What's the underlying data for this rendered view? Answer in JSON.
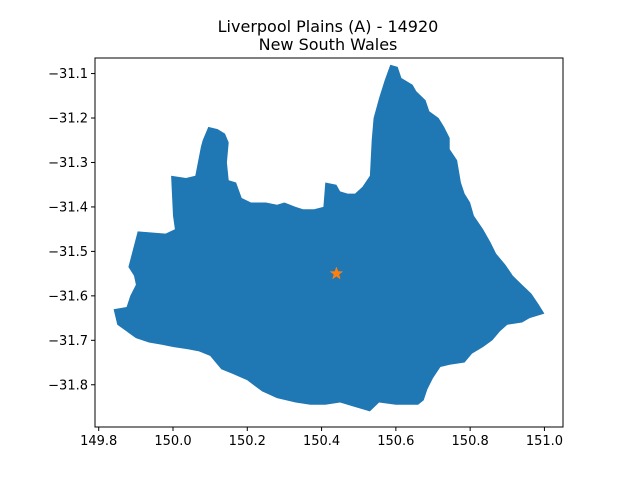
{
  "chart_data": {
    "type": "map",
    "title_line1": "Liverpool Plains (A) - 14920",
    "title_line2": "New South Wales",
    "xlim": [
      149.79,
      151.05
    ],
    "ylim": [
      -31.895,
      -31.065
    ],
    "x_ticks": [
      149.8,
      150.0,
      150.2,
      150.4,
      150.6,
      150.8,
      151.0
    ],
    "x_tick_labels": [
      "149.8",
      "150.0",
      "150.2",
      "150.4",
      "150.6",
      "150.8",
      "151.0"
    ],
    "y_ticks": [
      -31.1,
      -31.2,
      -31.3,
      -31.4,
      -31.5,
      -31.6,
      -31.7,
      -31.8
    ],
    "y_tick_labels": [
      "−31.1",
      "−31.2",
      "−31.3",
      "−31.4",
      "−31.5",
      "−31.6",
      "−31.7",
      "−31.8"
    ],
    "region_color": "#1f77b4",
    "marker_color": "#ff7f0e",
    "marker": {
      "lon": 150.44,
      "lat": -31.55,
      "shape": "star"
    },
    "boundary": [
      [
        149.88,
        -31.535
      ],
      [
        149.905,
        -31.455
      ],
      [
        149.98,
        -31.46
      ],
      [
        150.005,
        -31.45
      ],
      [
        150.0,
        -31.42
      ],
      [
        149.995,
        -31.33
      ],
      [
        150.035,
        -31.335
      ],
      [
        150.06,
        -31.33
      ],
      [
        150.075,
        -31.265
      ],
      [
        150.08,
        -31.25
      ],
      [
        150.095,
        -31.22
      ],
      [
        150.12,
        -31.225
      ],
      [
        150.14,
        -31.235
      ],
      [
        150.15,
        -31.255
      ],
      [
        150.145,
        -31.3
      ],
      [
        150.15,
        -31.34
      ],
      [
        150.17,
        -31.345
      ],
      [
        150.185,
        -31.38
      ],
      [
        150.21,
        -31.39
      ],
      [
        150.25,
        -31.39
      ],
      [
        150.28,
        -31.395
      ],
      [
        150.3,
        -31.39
      ],
      [
        150.33,
        -31.4
      ],
      [
        150.35,
        -31.405
      ],
      [
        150.38,
        -31.405
      ],
      [
        150.405,
        -31.4
      ],
      [
        150.41,
        -31.345
      ],
      [
        150.44,
        -31.35
      ],
      [
        150.45,
        -31.365
      ],
      [
        150.47,
        -31.37
      ],
      [
        150.49,
        -31.37
      ],
      [
        150.51,
        -31.355
      ],
      [
        150.53,
        -31.33
      ],
      [
        150.535,
        -31.25
      ],
      [
        150.54,
        -31.2
      ],
      [
        150.555,
        -31.155
      ],
      [
        150.57,
        -31.115
      ],
      [
        150.585,
        -31.08
      ],
      [
        150.605,
        -31.085
      ],
      [
        150.615,
        -31.11
      ],
      [
        150.645,
        -31.125
      ],
      [
        150.655,
        -31.14
      ],
      [
        150.68,
        -31.16
      ],
      [
        150.69,
        -31.185
      ],
      [
        150.715,
        -31.2
      ],
      [
        150.73,
        -31.22
      ],
      [
        150.745,
        -31.245
      ],
      [
        150.745,
        -31.27
      ],
      [
        150.765,
        -31.295
      ],
      [
        150.77,
        -31.32
      ],
      [
        150.775,
        -31.345
      ],
      [
        150.785,
        -31.37
      ],
      [
        150.8,
        -31.39
      ],
      [
        150.81,
        -31.42
      ],
      [
        150.835,
        -31.45
      ],
      [
        150.855,
        -31.48
      ],
      [
        150.87,
        -31.505
      ],
      [
        150.895,
        -31.53
      ],
      [
        150.915,
        -31.555
      ],
      [
        150.94,
        -31.575
      ],
      [
        150.965,
        -31.595
      ],
      [
        150.985,
        -31.62
      ],
      [
        151.0,
        -31.64
      ],
      [
        150.98,
        -31.645
      ],
      [
        150.96,
        -31.65
      ],
      [
        150.94,
        -31.66
      ],
      [
        150.9,
        -31.665
      ],
      [
        150.88,
        -31.68
      ],
      [
        150.86,
        -31.7
      ],
      [
        150.835,
        -31.715
      ],
      [
        150.805,
        -31.73
      ],
      [
        150.785,
        -31.75
      ],
      [
        150.745,
        -31.755
      ],
      [
        150.72,
        -31.76
      ],
      [
        150.7,
        -31.785
      ],
      [
        150.685,
        -31.81
      ],
      [
        150.675,
        -31.835
      ],
      [
        150.66,
        -31.845
      ],
      [
        150.6,
        -31.845
      ],
      [
        150.555,
        -31.84
      ],
      [
        150.53,
        -31.86
      ],
      [
        150.49,
        -31.85
      ],
      [
        150.45,
        -31.84
      ],
      [
        150.41,
        -31.845
      ],
      [
        150.37,
        -31.845
      ],
      [
        150.33,
        -31.84
      ],
      [
        150.28,
        -31.83
      ],
      [
        150.24,
        -31.815
      ],
      [
        150.2,
        -31.79
      ],
      [
        150.16,
        -31.775
      ],
      [
        150.13,
        -31.765
      ],
      [
        150.1,
        -31.735
      ],
      [
        150.07,
        -31.725
      ],
      [
        150.04,
        -31.72
      ],
      [
        150.0,
        -31.715
      ],
      [
        149.97,
        -31.71
      ],
      [
        149.935,
        -31.705
      ],
      [
        149.9,
        -31.695
      ],
      [
        149.85,
        -31.665
      ],
      [
        149.84,
        -31.63
      ],
      [
        149.875,
        -31.625
      ],
      [
        149.885,
        -31.6
      ],
      [
        149.9,
        -31.575
      ],
      [
        149.895,
        -31.555
      ]
    ]
  }
}
